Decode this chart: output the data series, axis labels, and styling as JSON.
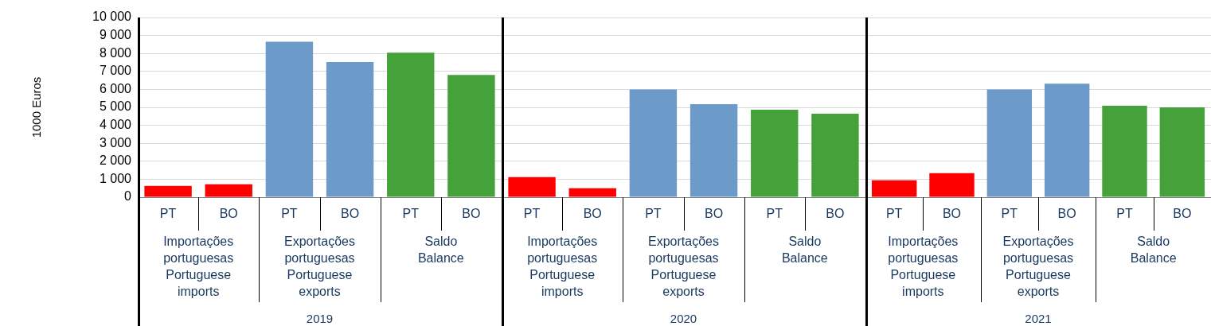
{
  "chart_data": [
    {
      "type": "bar",
      "xlabel": "2019",
      "ylabel": "1000 Euros",
      "categories": [
        "PT",
        "BO",
        "PT",
        "BO",
        "PT",
        "BO"
      ],
      "series": [
        {
          "name": "Importações portuguesas Portuguese imports",
          "color": "#ff0000",
          "values": [
            630,
            720,
            null,
            null,
            null,
            null
          ]
        },
        {
          "name": "Exportações portuguesas Portuguese exports",
          "color": "#6d9bc9",
          "values": [
            null,
            null,
            8650,
            7520,
            null,
            null
          ]
        },
        {
          "name": "Saldo Balance",
          "color": "#45a23a",
          "values": [
            null,
            null,
            null,
            null,
            8040,
            6800
          ]
        }
      ],
      "ylim": [
        0,
        10000
      ],
      "yticks": [
        0,
        {
          "value": 1000,
          "label": "1 000"
        },
        {
          "value": 2000,
          "label": "2 000"
        },
        {
          "value": 3000,
          "label": "3 000"
        },
        {
          "value": 4000,
          "label": "4 000"
        },
        {
          "value": 5000,
          "label": "5 000"
        },
        {
          "value": 6000,
          "label": "6 000"
        },
        {
          "value": 7000,
          "label": "7 000"
        },
        {
          "value": 8000,
          "label": "8 000"
        },
        {
          "value": 9000,
          "label": "9 000"
        },
        {
          "value": 10000,
          "label": "10 000"
        }
      ],
      "grid": "y"
    },
    {
      "type": "bar",
      "xlabel": "2020",
      "categories": [
        "PT",
        "BO",
        "PT",
        "BO",
        "PT",
        "BO"
      ],
      "series": [
        {
          "name": "Importações portuguesas Portuguese imports",
          "color": "#ff0000",
          "values": [
            1120,
            500,
            null,
            null,
            null,
            null
          ]
        },
        {
          "name": "Exportações portuguesas Portuguese exports",
          "color": "#6d9bc9",
          "values": [
            null,
            null,
            6000,
            5180,
            null,
            null
          ]
        },
        {
          "name": "Saldo Balance",
          "color": "#45a23a",
          "values": [
            null,
            null,
            null,
            null,
            4870,
            4650
          ]
        }
      ],
      "ylim": [
        0,
        10000
      ],
      "yticks": [
        0,
        1000,
        2000,
        3000,
        4000,
        5000,
        6000,
        7000,
        8000,
        9000,
        10000
      ],
      "grid": "y",
      "tick_labels": "x"
    },
    {
      "type": "bar",
      "xlabel": "2021",
      "categories": [
        "PT",
        "BO",
        "PT",
        "BO",
        "PT",
        "BO"
      ],
      "series": [
        {
          "name": "Importações portuguesas Portuguese imports",
          "color": "#ff0000",
          "values": [
            940,
            1340,
            null,
            null,
            null,
            null
          ]
        },
        {
          "name": "Exportações portuguesas Portuguese exports",
          "color": "#6d9bc9",
          "values": [
            null,
            null,
            6000,
            6320,
            null,
            null
          ]
        },
        {
          "name": "Saldo Balance",
          "color": "#45a23a",
          "values": [
            null,
            null,
            null,
            null,
            5090,
            5000
          ]
        }
      ],
      "ylim": [
        0,
        10000
      ],
      "yticks": [
        0,
        1000,
        2000,
        3000,
        4000,
        5000,
        6000,
        7000,
        8000,
        9000,
        10000
      ],
      "grid": "y",
      "tick_labels": "x"
    }
  ]
}
